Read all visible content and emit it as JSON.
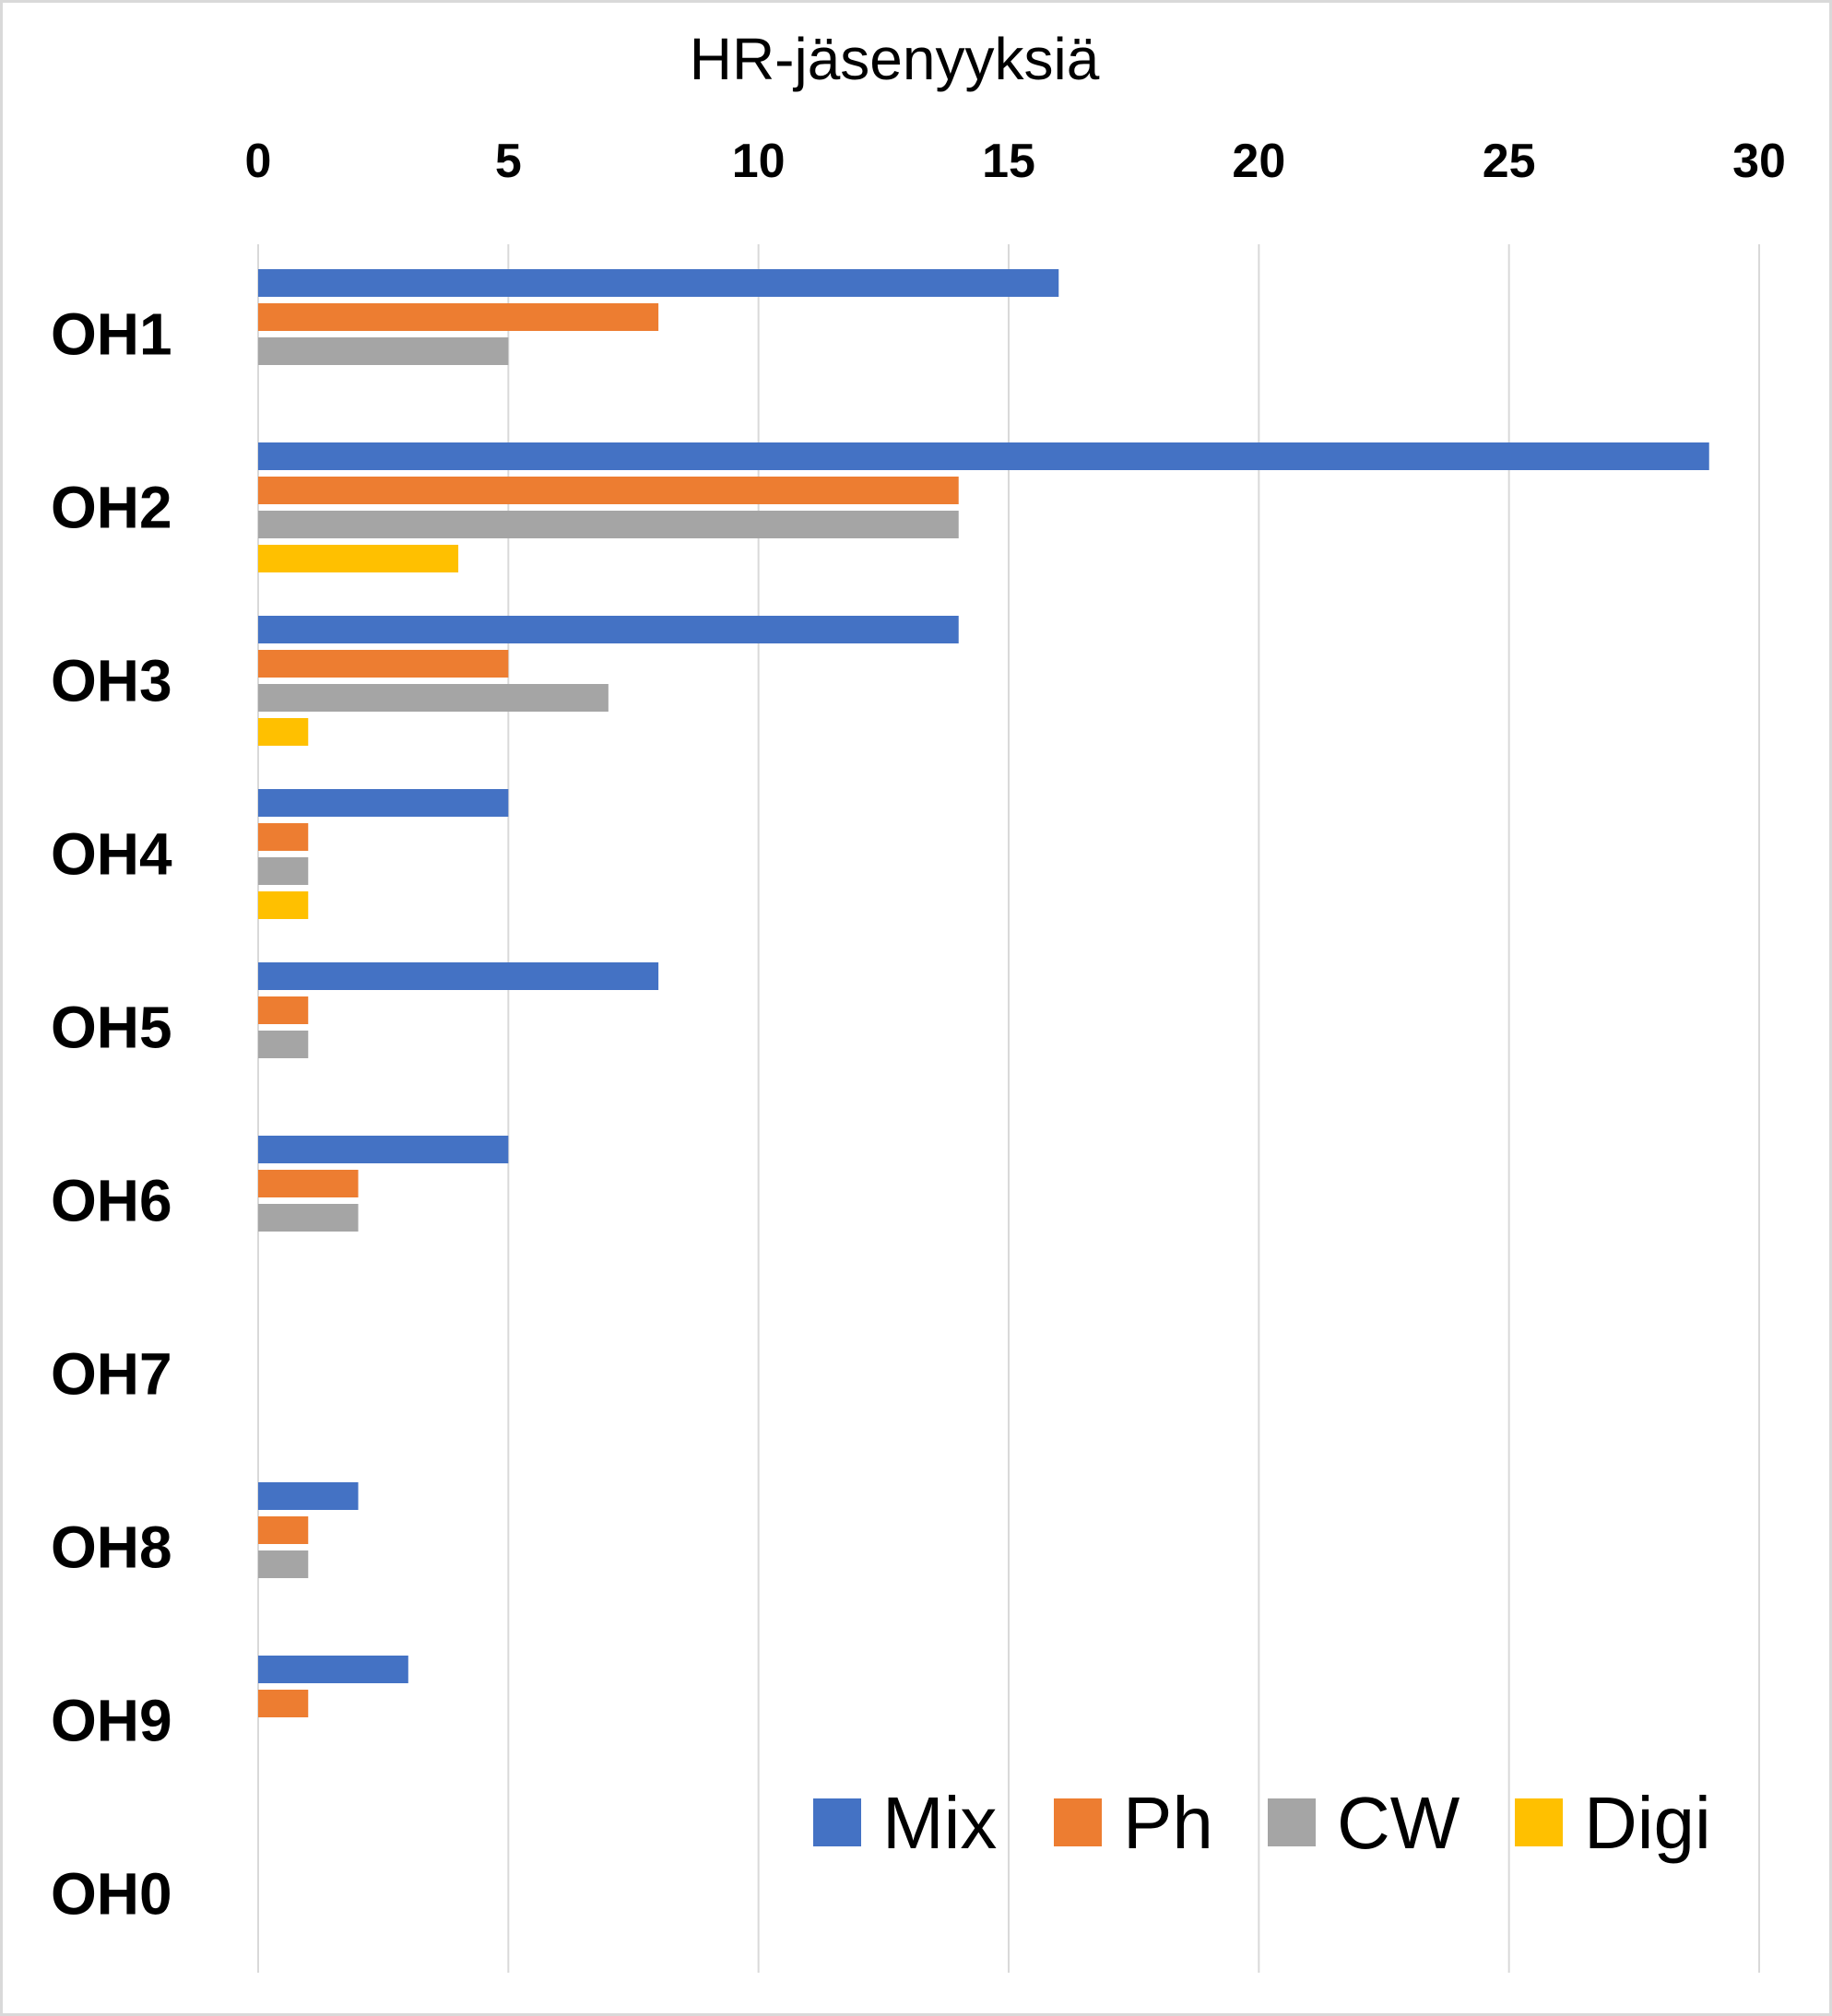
{
  "chart_data": {
    "type": "bar",
    "orientation": "horizontal",
    "title": "",
    "xlabel": "HR-jäsenyyksiä",
    "ylabel": "",
    "xlim": [
      0,
      30
    ],
    "xticks": [
      0,
      5,
      10,
      15,
      20,
      25,
      30
    ],
    "xaxis_position": "top",
    "grid": true,
    "legend_position": "bottom-right",
    "categories": [
      "OH1",
      "OH2",
      "OH3",
      "OH4",
      "OH5",
      "OH6",
      "OH7",
      "OH8",
      "OH9",
      "OH0"
    ],
    "series": [
      {
        "name": "Mix",
        "color": "#4472c4",
        "values": [
          16,
          29,
          14,
          5,
          8,
          5,
          0,
          2,
          3,
          0
        ]
      },
      {
        "name": "Ph",
        "color": "#ed7d31",
        "values": [
          8,
          14,
          5,
          1,
          1,
          2,
          0,
          1,
          1,
          0
        ]
      },
      {
        "name": "CW",
        "color": "#a5a5a5",
        "values": [
          5,
          14,
          7,
          1,
          1,
          2,
          0,
          1,
          0,
          0
        ]
      },
      {
        "name": "Digi",
        "color": "#ffc000",
        "values": [
          0,
          4,
          1,
          1,
          0,
          0,
          0,
          0,
          0,
          0
        ]
      }
    ]
  }
}
